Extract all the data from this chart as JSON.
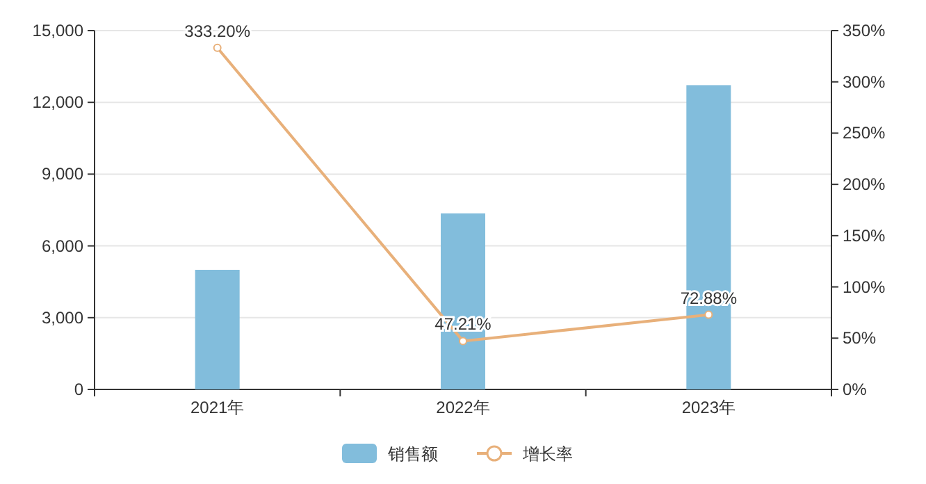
{
  "chart_data": {
    "type": "bar",
    "categories": [
      "2021年",
      "2022年",
      "2023年"
    ],
    "series": [
      {
        "name": "销售额",
        "color": "#82bddc",
        "values": [
          5000,
          7360,
          12720
        ]
      },
      {
        "name": "增长率",
        "type": "line",
        "axis": "y2",
        "color": "#e8b07a",
        "marker": "circle",
        "values": [
          333.2,
          47.21,
          72.88
        ],
        "value_labels": [
          "333.20%",
          "47.21%",
          "72.88%"
        ]
      }
    ],
    "ylim": [
      0,
      15000
    ],
    "yticks": [
      0,
      {
        "value": 3000,
        "label": "3,000"
      },
      {
        "value": 6000,
        "label": "6,000"
      },
      {
        "value": 9000,
        "label": "9,000"
      },
      {
        "value": 12000,
        "label": "12,000"
      },
      {
        "value": 15000,
        "label": "15,000"
      }
    ],
    "y2lim": [
      0,
      350
    ],
    "y2ticks": [
      {
        "value": 0,
        "label": "0%"
      },
      {
        "value": 50,
        "label": "50%"
      },
      {
        "value": 100,
        "label": "100%"
      },
      {
        "value": 150,
        "label": "150%"
      },
      {
        "value": 200,
        "label": "200%"
      },
      {
        "value": 250,
        "label": "250%"
      },
      {
        "value": 300,
        "label": "300%"
      },
      {
        "value": 350,
        "label": "350%"
      }
    ],
    "grid": "y",
    "legend": "bottom"
  }
}
